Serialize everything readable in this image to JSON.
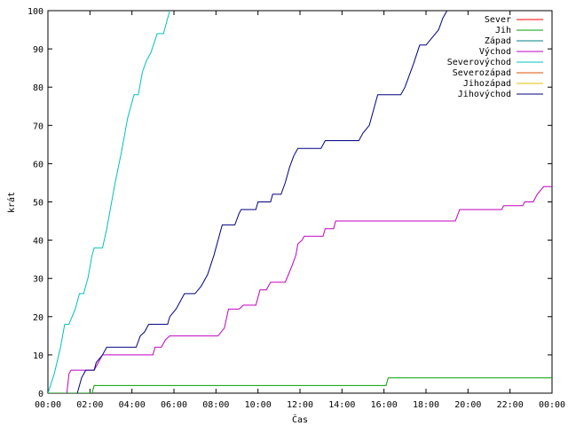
{
  "chart_data": {
    "type": "line",
    "title": "",
    "xlabel": "Čas",
    "ylabel": "krát",
    "xlim": [
      0,
      24
    ],
    "ylim": [
      0,
      100
    ],
    "grid": false,
    "legend_position": "top-right",
    "x_tick_values": [
      0,
      2,
      4,
      6,
      8,
      10,
      12,
      14,
      16,
      18,
      20,
      22,
      24
    ],
    "x_tick_labels": [
      "00:00",
      "02:00",
      "04:00",
      "06:00",
      "08:00",
      "10:00",
      "12:00",
      "14:00",
      "16:00",
      "18:00",
      "20:00",
      "22:00",
      "00:00"
    ],
    "y_tick_values": [
      0,
      10,
      20,
      30,
      40,
      50,
      60,
      70,
      80,
      90,
      100
    ],
    "y_tick_labels": [
      "0",
      "10",
      "20",
      "30",
      "40",
      "50",
      "60",
      "70",
      "80",
      "90",
      "100"
    ],
    "series": [
      {
        "name": "Sever",
        "color": "#ff0000",
        "points": []
      },
      {
        "name": "Jih",
        "color": "#00a000",
        "points": [
          [
            0,
            0
          ],
          [
            2.1,
            0
          ],
          [
            2.2,
            2
          ],
          [
            16.1,
            2
          ],
          [
            16.2,
            4
          ],
          [
            24,
            4
          ]
        ]
      },
      {
        "name": "Západ",
        "color": "#008080",
        "points": []
      },
      {
        "name": "Východ",
        "color": "#c000c0",
        "points": [
          [
            0.9,
            0
          ],
          [
            1.0,
            5
          ],
          [
            1.1,
            6
          ],
          [
            2.2,
            6
          ],
          [
            2.4,
            8
          ],
          [
            2.6,
            10
          ],
          [
            5.0,
            10
          ],
          [
            5.1,
            12
          ],
          [
            5.4,
            12
          ],
          [
            5.6,
            14
          ],
          [
            5.8,
            15
          ],
          [
            8.1,
            15
          ],
          [
            8.4,
            17
          ],
          [
            8.6,
            22
          ],
          [
            9.1,
            22
          ],
          [
            9.3,
            23
          ],
          [
            9.9,
            23
          ],
          [
            10.1,
            27
          ],
          [
            10.4,
            27
          ],
          [
            10.6,
            29
          ],
          [
            11.3,
            29
          ],
          [
            11.6,
            33
          ],
          [
            11.8,
            36
          ],
          [
            11.9,
            39
          ],
          [
            12.1,
            40
          ],
          [
            12.2,
            41
          ],
          [
            13.1,
            41
          ],
          [
            13.2,
            43
          ],
          [
            13.6,
            43
          ],
          [
            13.7,
            45
          ],
          [
            19.4,
            45
          ],
          [
            19.6,
            48
          ],
          [
            21.6,
            48
          ],
          [
            21.7,
            49
          ],
          [
            22.6,
            49
          ],
          [
            22.7,
            50
          ],
          [
            23.1,
            50
          ],
          [
            23.3,
            52
          ],
          [
            23.6,
            54
          ],
          [
            24,
            54
          ]
        ]
      },
      {
        "name": "Severovýchod",
        "color": "#00c0c0",
        "points": [
          [
            0,
            0
          ],
          [
            0.3,
            5
          ],
          [
            0.6,
            12
          ],
          [
            0.8,
            18
          ],
          [
            1.0,
            18
          ],
          [
            1.3,
            22
          ],
          [
            1.5,
            26
          ],
          [
            1.7,
            26
          ],
          [
            1.9,
            30
          ],
          [
            2.1,
            36
          ],
          [
            2.2,
            38
          ],
          [
            2.6,
            38
          ],
          [
            2.8,
            43
          ],
          [
            3.2,
            55
          ],
          [
            3.5,
            63
          ],
          [
            3.8,
            72
          ],
          [
            4.1,
            78
          ],
          [
            4.3,
            78
          ],
          [
            4.5,
            84
          ],
          [
            4.7,
            87
          ],
          [
            4.9,
            89
          ],
          [
            5.2,
            94
          ],
          [
            5.5,
            94
          ],
          [
            5.7,
            98
          ],
          [
            5.8,
            100
          ]
        ]
      },
      {
        "name": "Severozápad",
        "color": "#e05000",
        "points": []
      },
      {
        "name": "Jihozápad",
        "color": "#e0c000",
        "points": []
      },
      {
        "name": "Jihovýchod",
        "color": "#000080",
        "points": [
          [
            1.4,
            0
          ],
          [
            1.6,
            4
          ],
          [
            1.8,
            6
          ],
          [
            2.2,
            6
          ],
          [
            2.3,
            8
          ],
          [
            2.6,
            10
          ],
          [
            2.8,
            12
          ],
          [
            4.2,
            12
          ],
          [
            4.4,
            15
          ],
          [
            4.6,
            16
          ],
          [
            4.8,
            18
          ],
          [
            5.7,
            18
          ],
          [
            5.8,
            20
          ],
          [
            6.1,
            22
          ],
          [
            6.3,
            24
          ],
          [
            6.5,
            26
          ],
          [
            7.0,
            26
          ],
          [
            7.3,
            28
          ],
          [
            7.6,
            31
          ],
          [
            7.9,
            36
          ],
          [
            8.1,
            40
          ],
          [
            8.3,
            44
          ],
          [
            8.9,
            44
          ],
          [
            9.1,
            47
          ],
          [
            9.2,
            48
          ],
          [
            9.9,
            48
          ],
          [
            10.0,
            50
          ],
          [
            10.6,
            50
          ],
          [
            10.7,
            52
          ],
          [
            11.1,
            52
          ],
          [
            11.3,
            55
          ],
          [
            11.5,
            59
          ],
          [
            11.7,
            62
          ],
          [
            11.9,
            64
          ],
          [
            13.0,
            64
          ],
          [
            13.2,
            66
          ],
          [
            14.8,
            66
          ],
          [
            15.0,
            68
          ],
          [
            15.3,
            70
          ],
          [
            15.5,
            74
          ],
          [
            15.7,
            78
          ],
          [
            16.8,
            78
          ],
          [
            17.0,
            80
          ],
          [
            17.4,
            86
          ],
          [
            17.7,
            91
          ],
          [
            18.0,
            91
          ],
          [
            18.3,
            93
          ],
          [
            18.6,
            95
          ],
          [
            18.8,
            98
          ],
          [
            19.0,
            100
          ]
        ]
      }
    ]
  }
}
